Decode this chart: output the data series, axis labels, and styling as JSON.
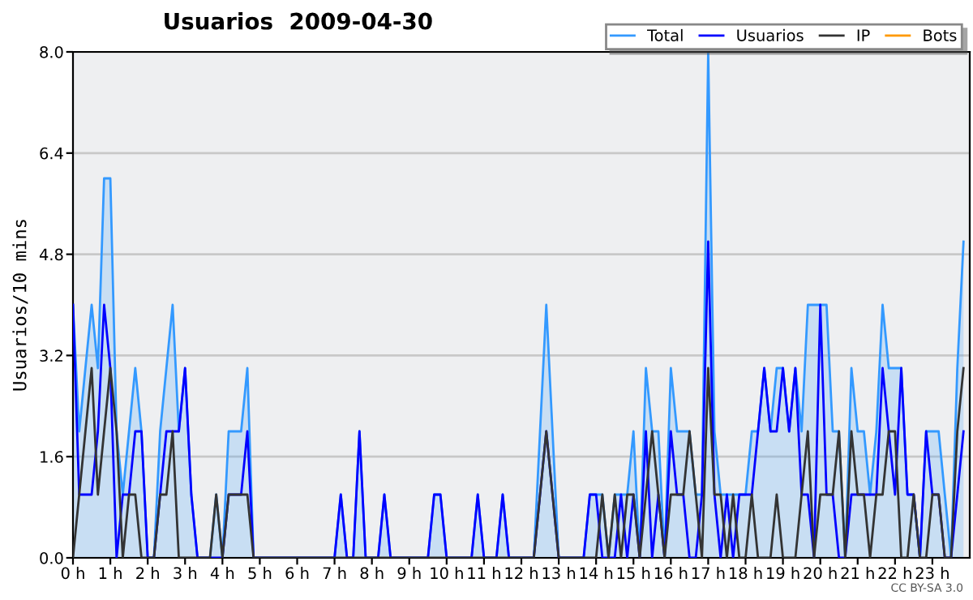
{
  "chart_data": {
    "type": "line",
    "title": "Usuarios  2009-04-30",
    "ylabel": "Usuarios/10 mins",
    "annotations": [
      "CC BY-SA 3.0"
    ],
    "x": [
      0,
      0.167,
      0.333,
      0.5,
      0.667,
      0.833,
      1,
      1.167,
      1.333,
      1.5,
      1.667,
      1.833,
      2,
      2.167,
      2.333,
      2.5,
      2.667,
      2.833,
      3,
      3.167,
      3.333,
      3.5,
      3.667,
      3.833,
      4,
      4.167,
      4.333,
      4.5,
      4.667,
      4.833,
      5,
      5.167,
      5.333,
      5.5,
      5.667,
      5.833,
      6,
      6.167,
      6.333,
      6.5,
      6.667,
      6.833,
      7,
      7.167,
      7.333,
      7.5,
      7.667,
      7.833,
      8,
      8.167,
      8.333,
      8.5,
      8.667,
      8.833,
      9,
      9.167,
      9.333,
      9.5,
      9.667,
      9.833,
      10,
      10.167,
      10.333,
      10.5,
      10.667,
      10.833,
      11,
      11.167,
      11.333,
      11.5,
      11.667,
      11.833,
      12,
      12.167,
      12.333,
      12.5,
      12.667,
      12.833,
      13,
      13.167,
      13.333,
      13.5,
      13.667,
      13.833,
      14,
      14.167,
      14.333,
      14.5,
      14.667,
      14.833,
      15,
      15.167,
      15.333,
      15.5,
      15.667,
      15.833,
      16,
      16.167,
      16.333,
      16.5,
      16.667,
      16.833,
      17,
      17.167,
      17.333,
      17.5,
      17.667,
      17.833,
      18,
      18.167,
      18.333,
      18.5,
      18.667,
      18.833,
      19,
      19.167,
      19.333,
      19.5,
      19.667,
      19.833,
      20,
      20.167,
      20.333,
      20.5,
      20.667,
      20.833,
      21,
      21.167,
      21.333,
      21.5,
      21.667,
      21.833,
      22,
      22.167,
      22.333,
      22.5,
      22.667,
      22.833,
      23,
      23.167,
      23.333,
      23.5,
      23.667,
      23.833
    ],
    "series": [
      {
        "name": "Total",
        "type": "area",
        "color": "#3399ff",
        "values": [
          4,
          2,
          3,
          4,
          3,
          6,
          6,
          2,
          1,
          2,
          3,
          2,
          0,
          0,
          2,
          3,
          4,
          2,
          3,
          1,
          0,
          0,
          0,
          1,
          0,
          2,
          2,
          2,
          3,
          0,
          0,
          0,
          0,
          0,
          0,
          0,
          0,
          0,
          0,
          0,
          0,
          0,
          0,
          1,
          0,
          0,
          2,
          0,
          0,
          0,
          1,
          0,
          0,
          0,
          0,
          0,
          0,
          0,
          1,
          1,
          0,
          0,
          0,
          0,
          0,
          1,
          0,
          0,
          0,
          1,
          0,
          0,
          0,
          0,
          0,
          2,
          4,
          2,
          0,
          0,
          0,
          0,
          0,
          1,
          1,
          1,
          0,
          1,
          1,
          1,
          2,
          0,
          3,
          2,
          2,
          0,
          3,
          2,
          2,
          2,
          1,
          1,
          8,
          2,
          1,
          1,
          1,
          1,
          1,
          2,
          2,
          3,
          2,
          3,
          3,
          2,
          3,
          2,
          4,
          4,
          4,
          4,
          2,
          2,
          0,
          3,
          2,
          2,
          1,
          2,
          4,
          3,
          3,
          3,
          1,
          1,
          0,
          2,
          2,
          2,
          1,
          0,
          3,
          5
        ]
      },
      {
        "name": "Usuarios",
        "color": "#0000ff",
        "values": [
          4,
          1,
          1,
          1,
          2,
          4,
          3,
          0,
          1,
          1,
          2,
          2,
          0,
          0,
          1,
          2,
          2,
          2,
          3,
          1,
          0,
          0,
          0,
          0,
          0,
          1,
          1,
          1,
          2,
          0,
          0,
          0,
          0,
          0,
          0,
          0,
          0,
          0,
          0,
          0,
          0,
          0,
          0,
          1,
          0,
          0,
          2,
          0,
          0,
          0,
          1,
          0,
          0,
          0,
          0,
          0,
          0,
          0,
          1,
          1,
          0,
          0,
          0,
          0,
          0,
          1,
          0,
          0,
          0,
          1,
          0,
          0,
          0,
          0,
          0,
          1,
          2,
          1,
          0,
          0,
          0,
          0,
          0,
          1,
          1,
          0,
          0,
          0,
          1,
          0,
          1,
          0,
          2,
          0,
          1,
          0,
          2,
          1,
          1,
          0,
          0,
          1,
          5,
          1,
          0,
          1,
          0,
          1,
          1,
          1,
          2,
          3,
          2,
          2,
          3,
          2,
          3,
          1,
          1,
          0,
          4,
          1,
          1,
          0,
          0,
          1,
          1,
          1,
          1,
          1,
          3,
          2,
          1,
          3,
          1,
          1,
          0,
          2,
          1,
          1,
          0,
          0,
          1,
          2
        ]
      },
      {
        "name": "IP",
        "color": "#333333",
        "values": [
          0,
          1,
          2,
          3,
          1,
          2,
          3,
          2,
          0,
          1,
          1,
          0,
          0,
          0,
          1,
          1,
          2,
          0,
          0,
          0,
          0,
          0,
          0,
          1,
          0,
          1,
          1,
          1,
          1,
          0,
          0,
          0,
          0,
          0,
          0,
          0,
          0,
          0,
          0,
          0,
          0,
          0,
          0,
          0,
          0,
          0,
          0,
          0,
          0,
          0,
          0,
          0,
          0,
          0,
          0,
          0,
          0,
          0,
          0,
          0,
          0,
          0,
          0,
          0,
          0,
          0,
          0,
          0,
          0,
          0,
          0,
          0,
          0,
          0,
          0,
          1,
          2,
          1,
          0,
          0,
          0,
          0,
          0,
          0,
          0,
          1,
          0,
          1,
          0,
          1,
          1,
          0,
          1,
          2,
          1,
          0,
          1,
          1,
          1,
          2,
          1,
          0,
          3,
          1,
          1,
          0,
          1,
          0,
          0,
          1,
          0,
          0,
          0,
          1,
          0,
          0,
          0,
          1,
          2,
          0,
          1,
          1,
          1,
          2,
          0,
          2,
          1,
          1,
          0,
          1,
          1,
          2,
          2,
          0,
          0,
          1,
          0,
          0,
          1,
          1,
          0,
          0,
          2,
          3
        ]
      },
      {
        "name": "Bots",
        "color": "#ff9900",
        "values": [
          null,
          null,
          null,
          null,
          null,
          null,
          null,
          null,
          null,
          null,
          null,
          null,
          null,
          null,
          null,
          null,
          null,
          null,
          null,
          null,
          null,
          null,
          null,
          null,
          null,
          null,
          null,
          null,
          null,
          null,
          null,
          null,
          null,
          null,
          null,
          null,
          null,
          null,
          null,
          null,
          null,
          null,
          null,
          null,
          null,
          null,
          null,
          null,
          null,
          null,
          null,
          null,
          null,
          null,
          null,
          null,
          null,
          null,
          null,
          null,
          null,
          null,
          null,
          null,
          null,
          null,
          null,
          null,
          null,
          null,
          null,
          null,
          null,
          null,
          null,
          null,
          null,
          null,
          null,
          null,
          null,
          null,
          null,
          null,
          null,
          null,
          null,
          null,
          null,
          null,
          null,
          null,
          null,
          null,
          null,
          null,
          null,
          null,
          null,
          null,
          null,
          null,
          null,
          null,
          null,
          null,
          null,
          null,
          null,
          null,
          null,
          null,
          null,
          null,
          null,
          null,
          null,
          null,
          null,
          null,
          null,
          null,
          null,
          null,
          null,
          null,
          null,
          null,
          null,
          null,
          null,
          null,
          null,
          null,
          null,
          null,
          null,
          null,
          null,
          null,
          null,
          null,
          null,
          null
        ]
      }
    ],
    "xlim": [
      0,
      24
    ],
    "xticks": [
      {
        "value": 0,
        "label": "0 h"
      },
      {
        "value": 1,
        "label": "1 h"
      },
      {
        "value": 2,
        "label": "2 h"
      },
      {
        "value": 3,
        "label": "3 h"
      },
      {
        "value": 4,
        "label": "4 h"
      },
      {
        "value": 5,
        "label": "5 h"
      },
      {
        "value": 6,
        "label": "6 h"
      },
      {
        "value": 7,
        "label": "7 h"
      },
      {
        "value": 8,
        "label": "8 h"
      },
      {
        "value": 9,
        "label": "9 h"
      },
      {
        "value": 10,
        "label": "10 h"
      },
      {
        "value": 11,
        "label": "11 h"
      },
      {
        "value": 12,
        "label": "12 h"
      },
      {
        "value": 13,
        "label": "13 h"
      },
      {
        "value": 14,
        "label": "14 h"
      },
      {
        "value": 15,
        "label": "15 h"
      },
      {
        "value": 16,
        "label": "16 h"
      },
      {
        "value": 17,
        "label": "17 h"
      },
      {
        "value": 18,
        "label": "18 h"
      },
      {
        "value": 19,
        "label": "19 h"
      },
      {
        "value": 20,
        "label": "20 h"
      },
      {
        "value": 21,
        "label": "21 h"
      },
      {
        "value": 22,
        "label": "22 h"
      },
      {
        "value": 23,
        "label": "23 h"
      }
    ],
    "ylim": [
      0,
      8
    ],
    "yticks": [
      {
        "value": 0,
        "label": "0.0"
      },
      {
        "value": 1.6,
        "label": "1.6"
      },
      {
        "value": 3.2,
        "label": "3.2"
      },
      {
        "value": 4.8,
        "label": "4.8"
      },
      {
        "value": 6.4,
        "label": "6.4"
      },
      {
        "value": 8,
        "label": "8.0"
      }
    ],
    "grid": "y",
    "legend": "top right"
  }
}
